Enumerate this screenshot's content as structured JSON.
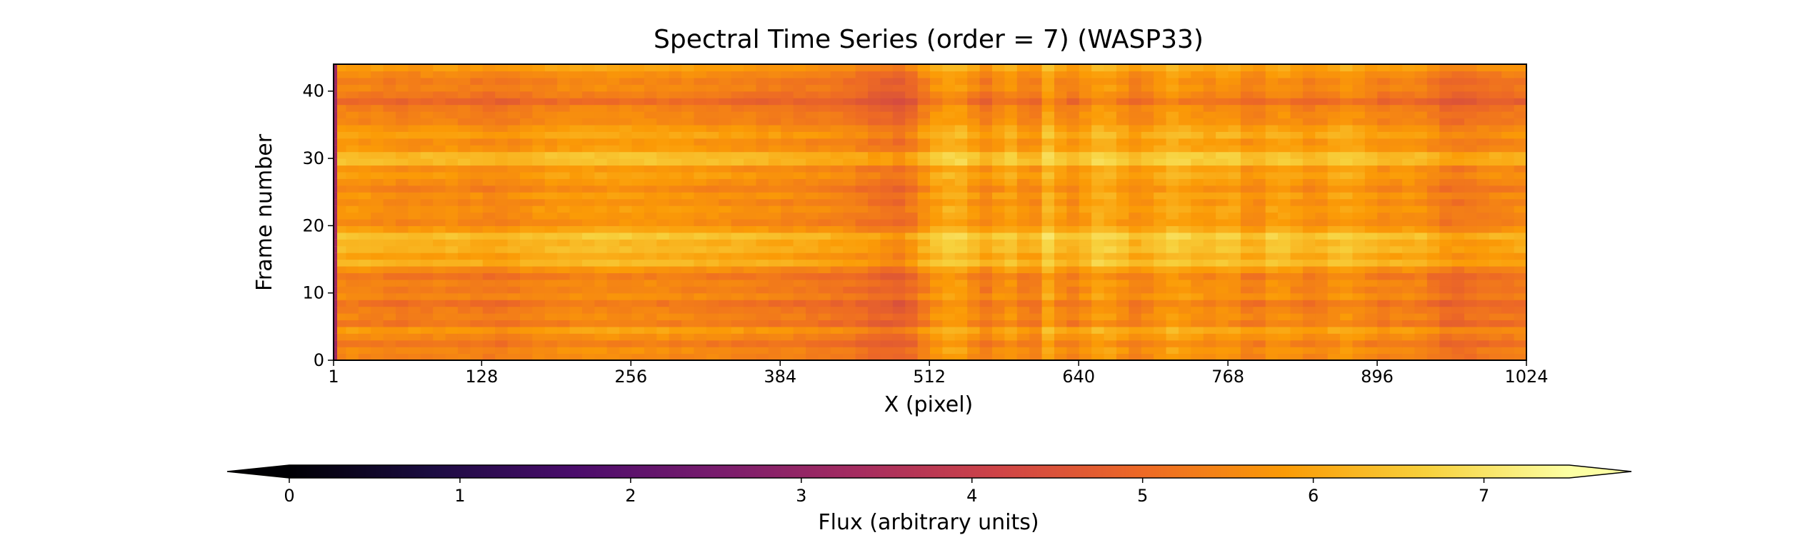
{
  "chart_data": {
    "type": "heatmap",
    "title": "Spectral Time Series (order = 7) (WASP33)",
    "xlabel": "X (pixel)",
    "ylabel": "Frame number",
    "xlim": [
      1,
      1024
    ],
    "ylim": [
      0,
      44
    ],
    "xticks": [
      1,
      128,
      256,
      384,
      512,
      640,
      768,
      896,
      1024
    ],
    "yticks": [
      0,
      10,
      20,
      30,
      40
    ],
    "n_frames": 44,
    "colormap": "inferno",
    "colormap_stops": [
      "#000004",
      "#1b0c41",
      "#4a0c6b",
      "#781c6d",
      "#a52c60",
      "#cf4446",
      "#ed6925",
      "#fb9b06",
      "#f7d13d",
      "#fcffa4"
    ],
    "colorbar": {
      "label": "Flux (arbitrary units)",
      "range": [
        0,
        7.5
      ],
      "ticks": [
        0,
        1,
        2,
        3,
        4,
        5,
        6,
        7
      ],
      "extend": "both",
      "orientation": "horizontal"
    },
    "frame_levels": [
      5.5,
      5.6,
      5.3,
      5.6,
      5.9,
      5.3,
      5.5,
      5.4,
      5.2,
      5.6,
      5.4,
      5.5,
      5.3,
      5.7,
      6.3,
      6.0,
      6.3,
      6.2,
      6.5,
      5.9,
      5.6,
      5.7,
      5.8,
      5.6,
      5.8,
      5.5,
      5.7,
      5.9,
      5.7,
      6.4,
      6.4,
      5.8,
      5.7,
      6.0,
      5.8,
      5.5,
      5.5,
      5.4,
      5.0,
      5.3,
      5.5,
      5.4,
      5.6,
      5.9
    ],
    "column_profile": [
      {
        "x": 1,
        "v": 0.0
      },
      {
        "x": 20,
        "v": 0.0
      },
      {
        "x": 60,
        "v": -0.15
      },
      {
        "x": 100,
        "v": -0.05
      },
      {
        "x": 140,
        "v": -0.25
      },
      {
        "x": 180,
        "v": 0.0
      },
      {
        "x": 230,
        "v": 0.1
      },
      {
        "x": 280,
        "v": 0.05
      },
      {
        "x": 330,
        "v": -0.05
      },
      {
        "x": 380,
        "v": -0.15
      },
      {
        "x": 440,
        "v": -0.3
      },
      {
        "x": 490,
        "v": -0.7
      },
      {
        "x": 515,
        "v": 0.2
      },
      {
        "x": 535,
        "v": 0.5
      },
      {
        "x": 560,
        "v": -0.2
      },
      {
        "x": 580,
        "v": 0.3
      },
      {
        "x": 600,
        "v": -0.3
      },
      {
        "x": 615,
        "v": 0.6
      },
      {
        "x": 630,
        "v": -0.2
      },
      {
        "x": 660,
        "v": 0.5
      },
      {
        "x": 690,
        "v": -0.1
      },
      {
        "x": 720,
        "v": 0.4
      },
      {
        "x": 750,
        "v": 0.1
      },
      {
        "x": 770,
        "v": 0.3
      },
      {
        "x": 790,
        "v": -0.2
      },
      {
        "x": 810,
        "v": 0.3
      },
      {
        "x": 840,
        "v": -0.1
      },
      {
        "x": 870,
        "v": 0.3
      },
      {
        "x": 900,
        "v": -0.1
      },
      {
        "x": 930,
        "v": 0.0
      },
      {
        "x": 960,
        "v": -0.5
      },
      {
        "x": 990,
        "v": -0.3
      },
      {
        "x": 1024,
        "v": -0.2
      }
    ]
  }
}
